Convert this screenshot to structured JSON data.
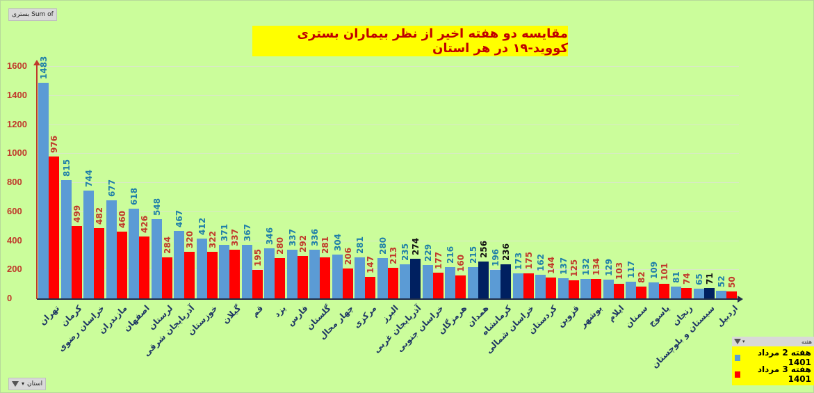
{
  "field_button_values": "بستری Sum of",
  "field_button_axis": "استان",
  "chart_data": {
    "type": "bar",
    "title": "مقایسه دو هفته اخیر از نظر بیماران بستری کووید-۱۹ در هر استان",
    "xlabel": "استان",
    "ylabel": "Sum of بستری",
    "ylim": [
      0,
      1600
    ],
    "yticks": [
      0,
      200,
      400,
      600,
      800,
      1000,
      1200,
      1400,
      1600
    ],
    "grid": true,
    "legend_position": "bottom-right",
    "legend_title": "هفته",
    "categories": [
      "تهران",
      "کرمان",
      "خراسان رضوی",
      "مازندران",
      "اصفهان",
      "لرستان",
      "آذربایجان شرقی",
      "خوزستان",
      "گیلان",
      "قم",
      "یزد",
      "فارس",
      "گلستان",
      "چهار محال",
      "مرکزی",
      "البرز",
      "آذربایجان غربی",
      "خراسان جنوبی",
      "هرمزگان",
      "همدان",
      "کرمانشاه",
      "خراسان شمالی",
      "کردستان",
      "قزوین",
      "بوشهر",
      "ایلام",
      "سمنان",
      "یاسوج",
      "زنجان",
      "سیستان و بلوچستان",
      "اردبیل"
    ],
    "series": [
      {
        "name": "هفته 2 مرداد 1401",
        "color": "#5b9bd5",
        "label_color": "#1f7fa8",
        "values": [
          1483,
          815,
          744,
          677,
          618,
          548,
          467,
          412,
          371,
          367,
          346,
          337,
          336,
          304,
          281,
          280,
          235,
          229,
          216,
          215,
          196,
          173,
          162,
          137,
          132,
          129,
          117,
          109,
          81,
          65,
          52
        ]
      },
      {
        "name": "هفته 3 مرداد 1401",
        "color": "#ff0000",
        "label_color": "#c0392b",
        "values": [
          976,
          499,
          482,
          460,
          426,
          284,
          320,
          322,
          337,
          195,
          280,
          292,
          281,
          206,
          147,
          213,
          274,
          177,
          160,
          256,
          236,
          175,
          144,
          125,
          134,
          103,
          82,
          101,
          74,
          71,
          50
        ]
      }
    ],
    "highlighted_increase_color": "#002060",
    "annotations": "Week-3 bars that increased over week-2 in certain provinces shown in dark navy"
  },
  "legend": {
    "title": "هفته",
    "items": [
      {
        "label": "هفته 2 مرداد 1401",
        "color": "#5b9bd5"
      },
      {
        "label": "هفته 3 مرداد 1401",
        "color": "#ff0000"
      }
    ]
  }
}
